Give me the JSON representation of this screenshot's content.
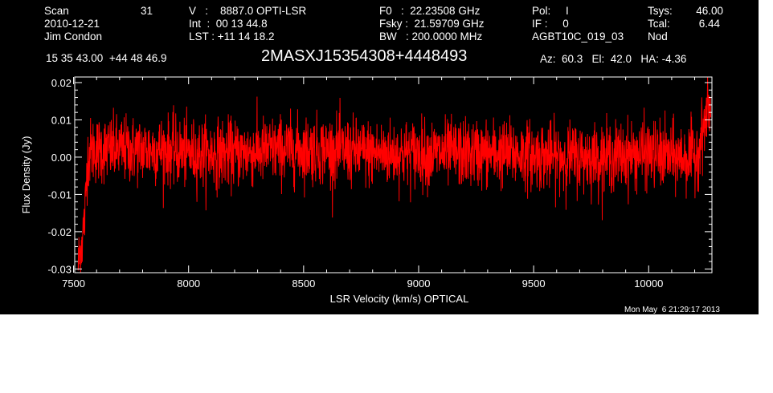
{
  "header": {
    "scan_label": "Scan",
    "scan_value": "31",
    "date": "2010-12-21",
    "observer": "Jim Condon",
    "velocity_line": "V   :    8887.0 OPTI-LSR",
    "int_line": "Int  :  00 13 44.8",
    "lst_line": "LST : +11 14 18.2",
    "f0_line": "F0   :  22.23508 GHz",
    "fsky_line": "Fsky :  21.59709 GHz",
    "bw_line": "BW   : 200.0000 MHz",
    "pol_line": "Pol:     I",
    "if_line": "IF :     0",
    "project": "AGBT10C_019_03",
    "tsys_label": "Tsys:",
    "tsys_value": "46.00",
    "tcal_label": "Tcal:",
    "tcal_value": "6.44",
    "mode": "Nod",
    "coordinates": "15 35 43.00  +44 48 46.9",
    "source": "2MASXJ15354308+4448493",
    "pointing": "Az:  60.3   El:  42.0   HA: -4.36",
    "timestamp": "Mon May  6 21:29:17 2013"
  },
  "chart_data": {
    "type": "line",
    "xlabel": "LSR Velocity (km/s) OPTICAL",
    "ylabel": "Flux Density (Jy)",
    "xlim": [
      7505,
      10275
    ],
    "ylim": [
      -0.031,
      0.0215
    ],
    "xticks": [
      7500,
      8000,
      8500,
      9000,
      9500,
      10000
    ],
    "yticks": [
      0.02,
      0.01,
      0.0,
      -0.01,
      -0.02,
      -0.03
    ],
    "xtick_labels": [
      "7500",
      "8000",
      "8500",
      "9000",
      "9500",
      "10000"
    ],
    "ytick_labels": [
      "0.02",
      "0.01",
      "0.00",
      "-0.01",
      "-0.02",
      "-0.03"
    ],
    "line_color": "#ff0000",
    "background": "#000000",
    "noise_rms": 0.0045,
    "series": [
      {
        "x": [
          7520,
          7530,
          7540,
          7550,
          7560,
          7580,
          7620,
          7700,
          7800,
          7900,
          8000,
          8200,
          8400,
          8600,
          8800,
          9000,
          9200,
          9400,
          9600,
          9800,
          10000,
          10100,
          10150,
          10200,
          10220,
          10240,
          10260,
          10270
        ],
        "values": [
          -0.029,
          -0.025,
          -0.021,
          -0.015,
          0.0,
          0.002,
          0.002,
          0.002,
          0.002,
          0.002,
          0.001,
          0.001,
          0.002,
          0.002,
          0.001,
          0.001,
          0.001,
          0.001,
          0.0,
          0.0,
          0.001,
          0.0,
          0.0,
          0.0,
          0.003,
          0.008,
          0.014,
          0.012
        ]
      }
    ]
  }
}
